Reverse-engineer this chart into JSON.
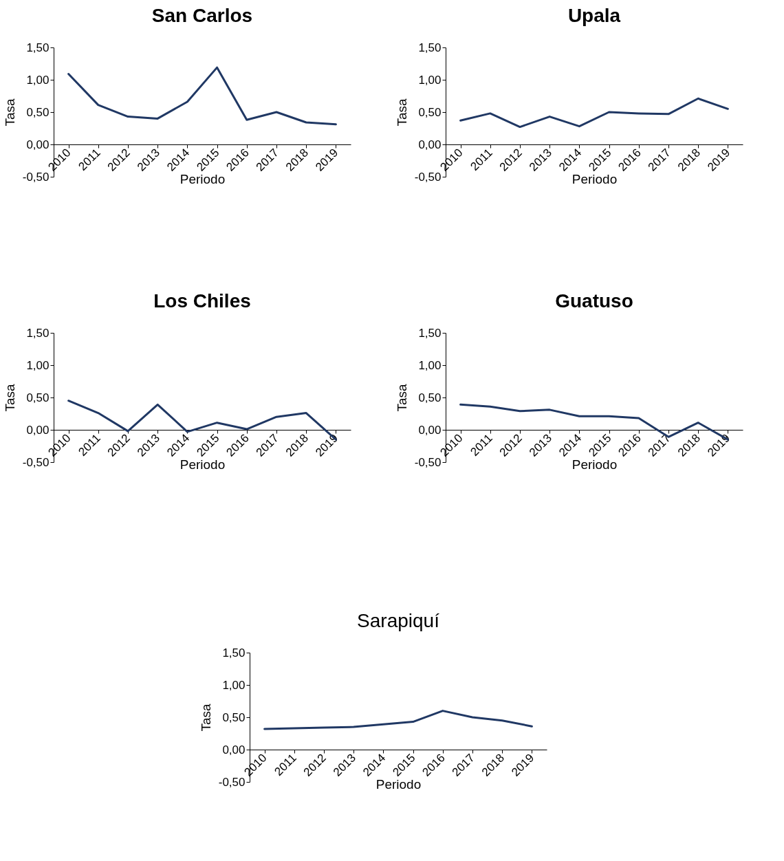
{
  "chart_data": [
    {
      "type": "line",
      "title": "San Carlos",
      "xlabel": "Periodo",
      "ylabel": "Tasa",
      "categories": [
        "2010",
        "2011",
        "2012",
        "2013",
        "2014",
        "2015",
        "2016",
        "2017",
        "2018",
        "2019"
      ],
      "series": [
        {
          "color": "#203864",
          "values": [
            1.09,
            0.61,
            0.43,
            0.4,
            0.66,
            1.19,
            0.38,
            0.5,
            0.34,
            0.31
          ]
        }
      ],
      "ylim": [
        -0.5,
        1.5
      ],
      "yticks": [
        {
          "value": -0.5,
          "label": "-0,50"
        },
        {
          "value": 0,
          "label": "0,00"
        },
        {
          "value": 0.5,
          "label": "0,50"
        },
        {
          "value": 1,
          "label": "1,00"
        },
        {
          "value": 1.5,
          "label": "1,50"
        }
      ],
      "grid": false
    },
    {
      "type": "line",
      "title": "Upala",
      "xlabel": "Periodo",
      "ylabel": "Tasa",
      "categories": [
        "2010",
        "2011",
        "2012",
        "2013",
        "2014",
        "2015",
        "2016",
        "2017",
        "2018",
        "2019"
      ],
      "series": [
        {
          "color": "#203864",
          "values": [
            0.37,
            0.48,
            0.27,
            0.43,
            0.28,
            0.5,
            0.48,
            0.47,
            0.71,
            0.55
          ]
        }
      ],
      "ylim": [
        -0.5,
        1.5
      ],
      "yticks": [
        {
          "value": -0.5,
          "label": "-0,50"
        },
        {
          "value": 0,
          "label": "0,00"
        },
        {
          "value": 0.5,
          "label": "0,50"
        },
        {
          "value": 1,
          "label": "1,00"
        },
        {
          "value": 1.5,
          "label": "1,50"
        }
      ],
      "grid": false
    },
    {
      "type": "line",
      "title": "Los Chiles",
      "xlabel": "Periodo",
      "ylabel": "Tasa",
      "categories": [
        "2010",
        "2011",
        "2012",
        "2013",
        "2014",
        "2015",
        "2016",
        "2017",
        "2018",
        "2019"
      ],
      "series": [
        {
          "color": "#203864",
          "values": [
            0.45,
            0.26,
            -0.02,
            0.39,
            -0.03,
            0.11,
            0.01,
            0.2,
            0.26,
            -0.15
          ]
        }
      ],
      "ylim": [
        -0.5,
        1.5
      ],
      "yticks": [
        {
          "value": -0.5,
          "label": "-0,50"
        },
        {
          "value": 0,
          "label": "0,00"
        },
        {
          "value": 0.5,
          "label": "0,50"
        },
        {
          "value": 1,
          "label": "1,00"
        },
        {
          "value": 1.5,
          "label": "1,50"
        }
      ],
      "grid": false
    },
    {
      "type": "line",
      "title": "Guatuso",
      "xlabel": "Periodo",
      "ylabel": "Tasa",
      "categories": [
        "2010",
        "2011",
        "2012",
        "2013",
        "2014",
        "2015",
        "2016",
        "2017",
        "2018",
        "2019"
      ],
      "series": [
        {
          "color": "#203864",
          "values": [
            0.39,
            0.36,
            0.29,
            0.31,
            0.21,
            0.21,
            0.18,
            -0.11,
            0.11,
            -0.15
          ]
        }
      ],
      "ylim": [
        -0.5,
        1.5
      ],
      "yticks": [
        {
          "value": -0.5,
          "label": "-0,50"
        },
        {
          "value": 0,
          "label": "0,00"
        },
        {
          "value": 0.5,
          "label": "0,50"
        },
        {
          "value": 1,
          "label": "1,00"
        },
        {
          "value": 1.5,
          "label": "1,50"
        }
      ],
      "grid": false
    },
    {
      "type": "line",
      "title": "Sarapiquí",
      "xlabel": "Periodo",
      "ylabel": "Tasa",
      "categories": [
        "2010",
        "2011",
        "2012",
        "2013",
        "2014",
        "2015",
        "2016",
        "2017",
        "2018",
        "2019"
      ],
      "series": [
        {
          "color": "#203864",
          "values": [
            0.32,
            0.33,
            0.34,
            0.35,
            0.39,
            0.43,
            0.6,
            0.5,
            0.45,
            0.36
          ]
        }
      ],
      "ylim": [
        -0.5,
        1.5
      ],
      "yticks": [
        {
          "value": -0.5,
          "label": "-0,50"
        },
        {
          "value": 0,
          "label": "0,00"
        },
        {
          "value": 0.5,
          "label": "0,50"
        },
        {
          "value": 1,
          "label": "1,00"
        },
        {
          "value": 1.5,
          "label": "1,50"
        }
      ],
      "grid": false
    }
  ]
}
